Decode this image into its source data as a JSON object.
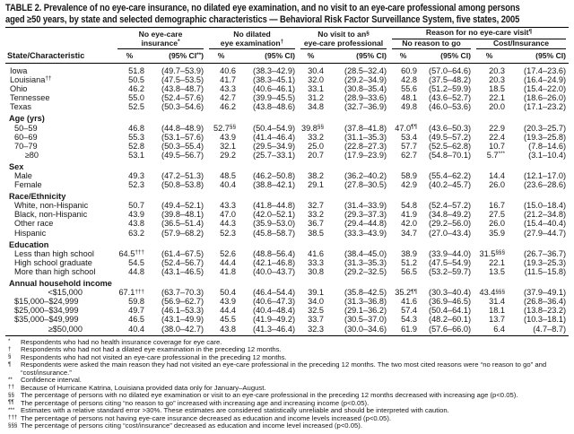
{
  "title": {
    "line1": "TABLE 2. Prevalence of no eye-care insurance, no dilated eye examination, and no visit to an eye-care professional among persons",
    "line2": "aged ≥50 years, by state and selected demographic characteristics — Behavioral Risk Factor Surveillance System, five states, 2005"
  },
  "header": {
    "row_label": "State/Characteristic",
    "groups": [
      {
        "line1": "No eye-care",
        "line2": "insurance^*",
        "pct": "%",
        "ci": "(95% CI^**^)"
      },
      {
        "line1": "No dilated",
        "line2": "eye examination^†",
        "pct": "%",
        "ci": "(95% CI)"
      },
      {
        "line1": "No visit to an^§",
        "line2": "eye-care professional",
        "pct": "%",
        "ci": "(95% CI)"
      }
    ],
    "reason": {
      "label": "Reason for no eye-care visit^¶",
      "sub": [
        {
          "label": "No reason to go",
          "pct": "%",
          "ci": "(95% CI)"
        },
        {
          "label": "Cost/Insurance",
          "pct": "%",
          "ci": "(95% CI)"
        }
      ]
    }
  },
  "rows": [
    {
      "t": "row",
      "label": "Iowa",
      "c": [
        "51.8",
        "(49.7–53.9)",
        "40.6",
        "(38.3–42.9)",
        "30.4",
        "(28.5–32.4)",
        "60.9",
        "(57.0–64.6)",
        "20.3",
        "(17.4–23.6)"
      ]
    },
    {
      "t": "row",
      "label": "Louisiana^††",
      "c": [
        "50.5",
        "(47.5–53.5)",
        "41.7",
        "(38.3–45.1)",
        "32.0",
        "(29.2–34.9)",
        "42.8",
        "(37.5–48.2)",
        "20.3",
        "(16.4–24.9)"
      ]
    },
    {
      "t": "row",
      "label": "Ohio",
      "c": [
        "46.2",
        "(43.8–48.7)",
        "43.3",
        "(40.6–46.1)",
        "33.1",
        "(30.8–35.4)",
        "55.6",
        "(51.2–59.9)",
        "18.5",
        "(15.4–22.0)"
      ]
    },
    {
      "t": "row",
      "label": "Tennessee",
      "c": [
        "55.0",
        "(52.4–57.6)",
        "42.7",
        "(39.9–45.5)",
        "31.2",
        "(28.9–33.6)",
        "48.1",
        "(43.6–52.7)",
        "22.1",
        "(18.6–26.0)"
      ]
    },
    {
      "t": "row",
      "label": "Texas",
      "c": [
        "52.5",
        "(50.3–54.6)",
        "46.2",
        "(43.8–48.6)",
        "34.8",
        "(32.7–36.9)",
        "49.8",
        "(46.0–53.6)",
        "20.0",
        "(17.1–23.2)"
      ]
    },
    {
      "t": "sec",
      "label": "Age (yrs)"
    },
    {
      "t": "row",
      "cls": "in1",
      "label": "50–59",
      "c": [
        "46.8",
        "(44.8–48.9)",
        "52.7^§§",
        "(50.4–54.9)",
        "39.8^§§",
        "(37.8–41.8)",
        "47.0^¶¶",
        "(43.6–50.3)",
        "22.9",
        "(20.3–25.7)"
      ]
    },
    {
      "t": "row",
      "cls": "in1",
      "label": "60–69",
      "c": [
        "55.3",
        "(53.1–57.6)",
        "43.9",
        "(41.4–46.4)",
        "33.2",
        "(31.1–35.3)",
        "53.4",
        "(49.5–57.2)",
        "22.4",
        "(19.3–25.8)"
      ]
    },
    {
      "t": "row",
      "cls": "in1",
      "label": "70–79",
      "c": [
        "52.8",
        "(50.3–55.4)",
        "32.1",
        "(29.5–34.9)",
        "25.0",
        "(22.8–27.3)",
        "57.7",
        "(52.5–62.8)",
        "10.7",
        "(7.8–14.6)"
      ]
    },
    {
      "t": "row",
      "cls": "in2",
      "label": "≥80",
      "c": [
        "53.1",
        "(49.5–56.7)",
        "29.2",
        "(25.7–33.1)",
        "20.7",
        "(17.9–23.9)",
        "62.7",
        "(54.8–70.1)",
        "5.7^***",
        "(3.1–10.4)"
      ]
    },
    {
      "t": "sec",
      "label": "Sex"
    },
    {
      "t": "row",
      "cls": "in1",
      "label": "Male",
      "c": [
        "49.3",
        "(47.2–51.3)",
        "48.5",
        "(46.2–50.8)",
        "38.2",
        "(36.2–40.2)",
        "58.9",
        "(55.4–62.2)",
        "14.4",
        "(12.1–17.0)"
      ]
    },
    {
      "t": "row",
      "cls": "in1",
      "label": "Female",
      "c": [
        "52.3",
        "(50.8–53.8)",
        "40.4",
        "(38.8–42.1)",
        "29.1",
        "(27.8–30.5)",
        "42.9",
        "(40.2–45.7)",
        "26.0",
        "(23.6–28.6)"
      ]
    },
    {
      "t": "sec",
      "label": "Race/Ethnicity"
    },
    {
      "t": "row",
      "cls": "in1",
      "label": "White, non-Hispanic",
      "c": [
        "50.7",
        "(49.4–52.1)",
        "43.3",
        "(41.8–44.8)",
        "32.7",
        "(31.4–33.9)",
        "54.8",
        "(52.4–57.2)",
        "16.7",
        "(15.0–18.4)"
      ]
    },
    {
      "t": "row",
      "cls": "in1",
      "label": "Black, non-Hispanic",
      "c": [
        "43.9",
        "(39.8–48.1)",
        "47.0",
        "(42.0–52.1)",
        "33.2",
        "(29.3–37.3)",
        "41.9",
        "(34.8–49.2)",
        "27.5",
        "(21.2–34.8)"
      ]
    },
    {
      "t": "row",
      "cls": "in1",
      "label": "Other race",
      "c": [
        "43.8",
        "(36.5–51.4)",
        "44.3",
        "(35.9–53.0)",
        "36.7",
        "(29.4–44.8)",
        "42.0",
        "(29.2–56.0)",
        "26.0",
        "(15.4–40.4)"
      ]
    },
    {
      "t": "row",
      "cls": "in1",
      "label": "Hispanic",
      "c": [
        "63.2",
        "(57.9–68.2)",
        "52.3",
        "(45.8–58.7)",
        "38.5",
        "(33.3–43.9)",
        "34.7",
        "(27.0–43.4)",
        "35.9",
        "(27.9–44.7)"
      ]
    },
    {
      "t": "sec",
      "label": "Education"
    },
    {
      "t": "row",
      "cls": "in1",
      "label": "Less than high school",
      "c": [
        "64.5^†††",
        "(61.4–67.5)",
        "52.6",
        "(48.8–56.4)",
        "41.6",
        "(38.4–45.0)",
        "38.9",
        "(33.9–44.0)",
        "31.5^§§§",
        "(26.7–36.7)"
      ]
    },
    {
      "t": "row",
      "cls": "in1",
      "label": "High school graduate",
      "c": [
        "54.5",
        "(52.4–56.7)",
        "44.4",
        "(42.1–46.8)",
        "33.3",
        "(31.3–35.3)",
        "51.2",
        "(47.5–54.9)",
        "22.1",
        "(19.3–25.3)"
      ]
    },
    {
      "t": "row",
      "cls": "in1",
      "label": "More than high school",
      "c": [
        "44.8",
        "(43.1–46.5)",
        "41.8",
        "(40.0–43.7)",
        "30.8",
        "(29.2–32.5)",
        "56.5",
        "(53.2–59.7)",
        "13.5",
        "(11.5–15.8)"
      ]
    },
    {
      "t": "sec",
      "label": "Annual household income"
    },
    {
      "t": "row",
      "cls": "money",
      "label": "<$15,000",
      "c": [
        "67.1^†††",
        "(63.7–70.3)",
        "50.4",
        "(46.4–54.4)",
        "39.1",
        "(35.8–42.5)",
        "35.2^¶¶",
        "(30.3–40.4)",
        "43.4^§§§",
        "(37.9–49.1)"
      ]
    },
    {
      "t": "row",
      "cls": "in1",
      "label": "$15,000–$24,999",
      "c": [
        "59.8",
        "(56.9–62.7)",
        "43.9",
        "(40.6–47.3)",
        "34.0",
        "(31.3–36.8)",
        "41.6",
        "(36.9–46.5)",
        "31.4",
        "(26.8–36.4)"
      ]
    },
    {
      "t": "row",
      "cls": "in1",
      "label": "$25,000–$34,999",
      "c": [
        "49.7",
        "(46.1–53.3)",
        "44.4",
        "(40.4–48.4)",
        "32.5",
        "(29.1–36.2)",
        "57.4",
        "(50.4–64.1)",
        "18.1",
        "(13.8–23.2)"
      ]
    },
    {
      "t": "row",
      "cls": "in1",
      "label": "$35,000–$49,999",
      "c": [
        "46.5",
        "(43.1–49.9)",
        "45.5",
        "(41.9–49.2)",
        "33.7",
        "(30.5–37.0)",
        "54.3",
        "(48.2–60.1)",
        "13.7",
        "(10.3–18.1)"
      ]
    },
    {
      "t": "row",
      "cls": "money",
      "label": "≥$50,000",
      "c": [
        "40.4",
        "(38.0–42.7)",
        "43.8",
        "(41.3–46.4)",
        "32.3",
        "(30.0–34.6)",
        "61.9",
        "(57.6–66.0)",
        "6.4",
        "(4.7–8.7)"
      ]
    }
  ],
  "footnotes": [
    {
      "sym": "*",
      "text": "Respondents who had no health insurance coverage for eye care."
    },
    {
      "sym": "†",
      "text": "Respondents who had not had a dilated eye examination in the preceding 12 months."
    },
    {
      "sym": "§",
      "text": "Respondents who had not visited an eye-care professional in the preceding 12 months."
    },
    {
      "sym": "¶",
      "text": "Respondents were asked the main reason they had not visited an eye-care professional in the preceding 12 months. The two most cited reasons were “no reason to go” and “cost/insurance.”"
    },
    {
      "sym": "**",
      "text": "Confidence interval."
    },
    {
      "sym": "††",
      "text": "Because of Hurricane Katrina, Louisiana provided data only for January–August."
    },
    {
      "sym": "§§",
      "text": "The percentage of persons with no dilated eye examination or visit to an eye-care professional in the preceding 12 months decreased with increasing age (p<0.05)."
    },
    {
      "sym": "¶¶",
      "text": "The percentage of persons citing “no reason to go” increased with increasing age and increasing income (p<0.05)."
    },
    {
      "sym": "***",
      "text": "Estimates with a relative standard error >30%. These estimates are considered statistically unreliable and should be interpreted with caution."
    },
    {
      "sym": "†††",
      "text": "The percentage of persons not having eye-care insurance decreased as education and income levels increased (p<0.05)."
    },
    {
      "sym": "§§§",
      "text": "The percentage of persons citing “cost/insurance” decreased as education and income level increased (p<0.05)."
    }
  ]
}
